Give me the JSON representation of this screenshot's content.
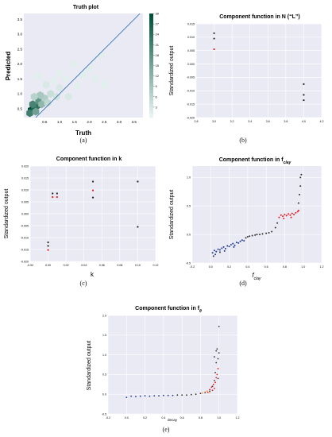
{
  "chart_data": [
    {
      "id": "a",
      "type": "heatmap",
      "title": "Truth plot",
      "xlabel": "Truth",
      "ylabel": "Predicted",
      "xlim": [
        -0.2,
        3.8
      ],
      "ylim": [
        0.2,
        3.7
      ],
      "xticks": [
        "0.5",
        "1.0",
        "1.5",
        "2.0",
        "2.5",
        "3.0",
        "3.5"
      ],
      "yticks": [
        "0.5",
        "1.0",
        "1.5",
        "2.0",
        "2.5",
        "3.0",
        "3.5"
      ],
      "colorbar": {
        "ticks": [
          "30",
          "27",
          "24",
          "21",
          "18",
          "15",
          "12",
          "9",
          "6",
          "3"
        ],
        "colormap": "white-to-dark-green"
      },
      "diagonal_line": true,
      "cells": [
        {
          "x": 0.05,
          "y": 0.45,
          "v": 30
        },
        {
          "x": 0.15,
          "y": 0.55,
          "v": 27
        },
        {
          "x": 0.25,
          "y": 0.6,
          "v": 24
        },
        {
          "x": 0.1,
          "y": 0.65,
          "v": 21
        },
        {
          "x": 0.3,
          "y": 0.75,
          "v": 18
        },
        {
          "x": 0.0,
          "y": 0.35,
          "v": 22
        },
        {
          "x": 0.2,
          "y": 0.4,
          "v": 16
        },
        {
          "x": 0.4,
          "y": 0.65,
          "v": 12
        },
        {
          "x": 0.5,
          "y": 0.85,
          "v": 8
        },
        {
          "x": 0.35,
          "y": 0.95,
          "v": 9
        },
        {
          "x": 0.6,
          "y": 0.7,
          "v": 6
        },
        {
          "x": 0.7,
          "y": 1.0,
          "v": 5
        },
        {
          "x": 0.15,
          "y": 0.9,
          "v": 7
        },
        {
          "x": 0.9,
          "y": 0.9,
          "v": 4
        },
        {
          "x": 1.0,
          "y": 1.2,
          "v": 3
        },
        {
          "x": 0.55,
          "y": 1.3,
          "v": 3
        },
        {
          "x": 1.3,
          "y": 0.9,
          "v": 3
        },
        {
          "x": 1.2,
          "y": 1.5,
          "v": 2
        },
        {
          "x": 0.8,
          "y": 1.45,
          "v": 2
        },
        {
          "x": 1.6,
          "y": 1.25,
          "v": 2
        },
        {
          "x": 1.8,
          "y": 1.6,
          "v": 2
        },
        {
          "x": 2.0,
          "y": 1.85,
          "v": 2
        },
        {
          "x": 2.2,
          "y": 1.5,
          "v": 2
        },
        {
          "x": 1.5,
          "y": 2.0,
          "v": 2
        },
        {
          "x": 0.3,
          "y": 1.6,
          "v": 2
        },
        {
          "x": 2.5,
          "y": 1.3,
          "v": 2
        },
        {
          "x": 2.4,
          "y": 2.3,
          "v": 2
        },
        {
          "x": 1.0,
          "y": 1.7,
          "v": 2
        }
      ]
    },
    {
      "id": "b",
      "type": "scatter",
      "title": "Component function in N (“L”)",
      "ylabel": "Standardized output",
      "xlim": [
        2.8,
        4.2
      ],
      "ylim": [
        -0.02,
        0.015
      ],
      "xticks": [
        2.8,
        3.0,
        3.2,
        3.4,
        3.6,
        3.8,
        4.0,
        4.2
      ],
      "xtick_labels": [
        "2.8",
        "3.0",
        "3.2",
        "3.4",
        "3.6",
        "3.8",
        "4.0",
        "4.2"
      ],
      "yticks": [
        0.015,
        0.01,
        0.005,
        0.0,
        -0.005,
        -0.01,
        -0.015,
        -0.02
      ],
      "ytick_labels": [
        "0.015",
        "0.010",
        "0.005",
        "0.000",
        "-0.005",
        "-0.010",
        "-0.015",
        "-0.020"
      ],
      "series": [
        {
          "color": "#222222",
          "points": [
            [
              3.0,
              0.0115
            ],
            [
              3.0,
              0.0095
            ],
            [
              4.0,
              -0.0075
            ],
            [
              4.0,
              -0.0115
            ],
            [
              4.0,
              -0.0135
            ]
          ]
        },
        {
          "color": "#e41a1c",
          "points": [
            [
              3.0,
              0.0055
            ]
          ]
        }
      ]
    },
    {
      "id": "c",
      "type": "scatter",
      "title": "Component function in k",
      "ylabel": "Standardized output",
      "xlabel": "k",
      "xlim": [
        -0.02,
        0.12
      ],
      "ylim": [
        -0.02,
        0.02
      ],
      "xticks": [
        -0.02,
        0.0,
        0.02,
        0.04,
        0.06,
        0.08,
        0.1,
        0.12
      ],
      "xtick_labels": [
        "-0.02",
        "0.00",
        "0.02",
        "0.04",
        "0.06",
        "0.08",
        "0.10",
        "0.12"
      ],
      "yticks": [
        0.02,
        0.015,
        0.01,
        0.005,
        0.0,
        -0.005,
        -0.01,
        -0.015,
        -0.02
      ],
      "ytick_labels": [
        "0.020",
        "0.015",
        "0.010",
        "0.005",
        "0.000",
        "-0.005",
        "-0.010",
        "-0.015",
        "-0.020"
      ],
      "series": [
        {
          "color": "#222222",
          "points": [
            [
              0.0,
              -0.012
            ],
            [
              0.0,
              -0.0135
            ],
            [
              0.005,
              0.0085
            ],
            [
              0.01,
              0.0085
            ],
            [
              0.05,
              0.0135
            ],
            [
              0.05,
              0.0068
            ],
            [
              0.1,
              0.0135
            ],
            [
              0.1,
              -0.0055
            ]
          ]
        },
        {
          "color": "#e41a1c",
          "points": [
            [
              0.0,
              -0.0152
            ],
            [
              0.005,
              0.007
            ],
            [
              0.01,
              0.007
            ],
            [
              0.05,
              0.0098
            ]
          ]
        }
      ]
    },
    {
      "id": "d",
      "type": "scatter",
      "title": "Component function in f",
      "title_sub": "clay",
      "ylabel": "Standardized output",
      "xlabel": "f",
      "xlabel_sub": "clay",
      "xlim": [
        -0.2,
        1.2
      ],
      "ylim": [
        -0.5,
        1.2
      ],
      "xticks": [
        -0.2,
        0.0,
        0.2,
        0.4,
        0.6,
        0.8,
        1.0,
        1.2
      ],
      "xtick_labels": [
        "-0.2",
        "0.0",
        "0.2",
        "0.4",
        "0.6",
        "0.8",
        "1.0",
        "1.2"
      ],
      "yticks": [
        1.0,
        0.5,
        0.0,
        -0.5
      ],
      "ytick_labels": [
        "1.0",
        "0.5",
        "0.0",
        "-0.5"
      ],
      "series": [
        {
          "color": "#1f3a93",
          "points": [
            [
              0.02,
              -0.32
            ],
            [
              0.04,
              -0.28
            ],
            [
              0.06,
              -0.3
            ],
            [
              0.08,
              -0.26
            ],
            [
              0.1,
              -0.27
            ],
            [
              0.12,
              -0.24
            ],
            [
              0.14,
              -0.22
            ],
            [
              0.16,
              -0.25
            ],
            [
              0.18,
              -0.2
            ],
            [
              0.2,
              -0.21
            ],
            [
              0.22,
              -0.18
            ],
            [
              0.24,
              -0.16
            ],
            [
              0.26,
              -0.19
            ],
            [
              0.28,
              -0.14
            ],
            [
              0.3,
              -0.15
            ],
            [
              0.32,
              -0.12
            ],
            [
              0.34,
              -0.1
            ],
            [
              0.36,
              -0.11
            ],
            [
              0.05,
              -0.35
            ],
            [
              0.15,
              -0.29
            ],
            [
              0.25,
              -0.22
            ]
          ]
        },
        {
          "color": "#333333",
          "points": [
            [
              0.38,
              -0.06
            ],
            [
              0.4,
              -0.04
            ],
            [
              0.42,
              -0.03
            ],
            [
              0.45,
              -0.02
            ],
            [
              0.48,
              -0.01
            ],
            [
              0.5,
              0.0
            ],
            [
              0.53,
              0.0
            ],
            [
              0.56,
              0.01
            ],
            [
              0.6,
              0.02
            ],
            [
              0.63,
              0.03
            ],
            [
              0.66,
              0.05
            ],
            [
              0.7,
              0.12
            ],
            [
              0.72,
              0.2
            ],
            [
              0.95,
              0.55
            ],
            [
              0.96,
              0.7
            ],
            [
              0.97,
              0.85
            ],
            [
              0.98,
              1.05
            ],
            [
              0.97,
              1.0
            ],
            [
              0.03,
              -0.38
            ],
            [
              0.1,
              -0.31
            ]
          ]
        },
        {
          "color": "#e41a1c",
          "points": [
            [
              0.74,
              0.3
            ],
            [
              0.76,
              0.34
            ],
            [
              0.78,
              0.32
            ],
            [
              0.8,
              0.35
            ],
            [
              0.82,
              0.33
            ],
            [
              0.84,
              0.36
            ],
            [
              0.86,
              0.34
            ],
            [
              0.88,
              0.37
            ],
            [
              0.9,
              0.35
            ],
            [
              0.92,
              0.38
            ],
            [
              0.94,
              0.4
            ],
            [
              0.95,
              0.42
            ],
            [
              0.79,
              0.28
            ],
            [
              0.87,
              0.3
            ]
          ]
        }
      ]
    },
    {
      "id": "e",
      "type": "scatter",
      "title": "Component function in f",
      "title_sub": "θ",
      "ylabel": "Standardized output",
      "xlabel": "decay",
      "xlim": [
        -0.2,
        1.2
      ],
      "ylim": [
        -0.5,
        2.0
      ],
      "xticks": [
        -0.2,
        0.0,
        0.2,
        0.4,
        0.6,
        0.8,
        1.0,
        1.2
      ],
      "xtick_labels": [
        "-0.2",
        "0.0",
        "0.2",
        "0.4",
        "0.6",
        "0.8",
        "1.0",
        "1.2"
      ],
      "yticks": [
        2.0,
        1.5,
        1.0,
        0.5,
        0.0,
        -0.5
      ],
      "ytick_labels": [
        "2.0",
        "1.5",
        "1.0",
        "0.5",
        "0.0",
        "-0.5"
      ],
      "series": [
        {
          "color": "#1f3a93",
          "points": [
            [
              0.0,
              -0.08
            ],
            [
              0.05,
              -0.05
            ],
            [
              0.1,
              -0.06
            ],
            [
              0.15,
              -0.05
            ],
            [
              0.2,
              -0.04
            ],
            [
              0.25,
              -0.05
            ],
            [
              0.3,
              -0.04
            ],
            [
              0.35,
              -0.04
            ],
            [
              0.4,
              -0.03
            ],
            [
              0.45,
              -0.03
            ],
            [
              0.5,
              -0.03
            ]
          ]
        },
        {
          "color": "#333333",
          "points": [
            [
              0.55,
              -0.02
            ],
            [
              0.6,
              -0.02
            ],
            [
              0.65,
              -0.02
            ],
            [
              0.7,
              -0.01
            ],
            [
              0.75,
              0.0
            ],
            [
              0.8,
              0.02
            ],
            [
              0.85,
              0.04
            ],
            [
              0.9,
              0.08
            ],
            [
              0.93,
              0.2
            ],
            [
              0.95,
              0.35
            ],
            [
              0.96,
              0.55
            ],
            [
              0.97,
              0.8
            ],
            [
              0.97,
              1.1
            ],
            [
              0.98,
              1.15
            ],
            [
              0.99,
              0.9
            ],
            [
              1.0,
              1.05
            ],
            [
              1.0,
              1.72
            ],
            [
              0.95,
              0.95
            ],
            [
              0.99,
              0.4
            ]
          ]
        },
        {
          "color": "#e41a1c",
          "points": [
            [
              0.88,
              0.05
            ],
            [
              0.9,
              0.12
            ],
            [
              0.92,
              0.18
            ],
            [
              0.94,
              0.25
            ],
            [
              0.96,
              0.3
            ],
            [
              0.97,
              0.42
            ],
            [
              0.98,
              0.5
            ],
            [
              0.99,
              0.65
            ],
            [
              0.93,
              0.1
            ],
            [
              0.95,
              0.15
            ]
          ]
        },
        {
          "color": "#f39c4b",
          "points": [
            [
              0.82,
              0.03
            ],
            [
              0.85,
              0.06
            ],
            [
              0.87,
              0.08
            ],
            [
              0.9,
              0.04
            ]
          ]
        }
      ]
    }
  ],
  "captions": [
    "(a)",
    "(b)",
    "(c)",
    "(d)",
    "(e)"
  ]
}
